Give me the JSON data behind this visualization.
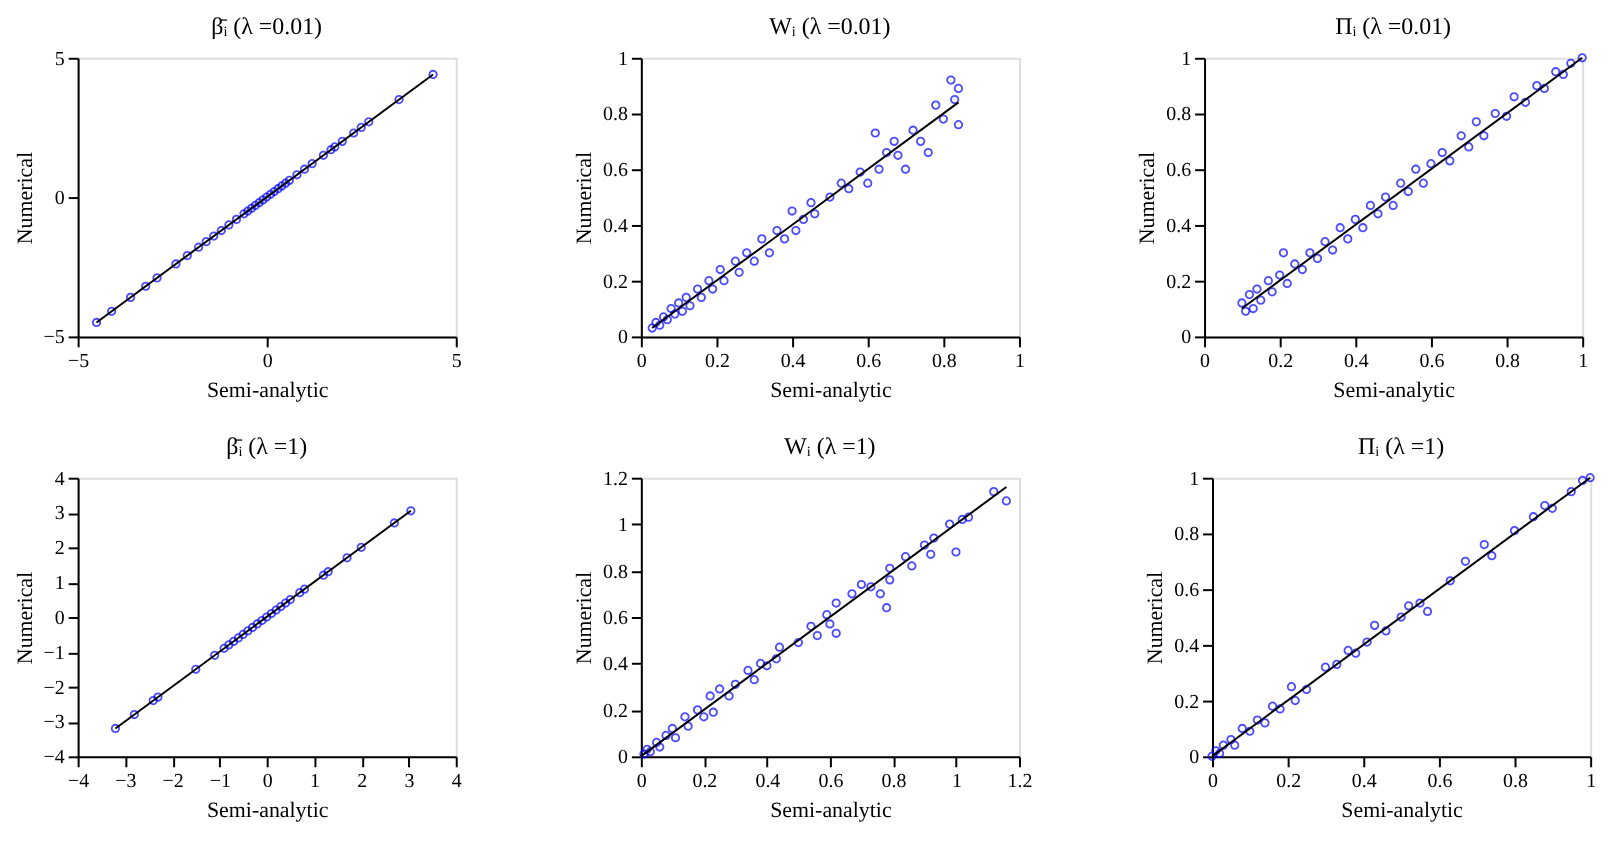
{
  "chart_data": [
    {
      "type": "scatter",
      "title": "β̄ᵢ (λ =0.01)",
      "xlabel": "Semi-analytic",
      "ylabel": "Numerical",
      "xlim": [
        -5,
        5
      ],
      "ylim": [
        -5,
        5
      ],
      "xticks": [
        -5,
        0,
        5
      ],
      "yticks": [
        -5,
        0,
        5
      ],
      "grid": false,
      "marker": "circle",
      "series": [
        {
          "color": "#0000ff",
          "x": [
            -4.5,
            -4.1,
            -3.6,
            -3.2,
            -2.9,
            -2.4,
            -2.1,
            -1.8,
            -1.6,
            -1.4,
            -1.2,
            -1.0,
            -0.8,
            -0.6,
            -0.5,
            -0.4,
            -0.3,
            -0.2,
            -0.1,
            0,
            0.1,
            0.2,
            0.3,
            0.4,
            0.5,
            0.6,
            0.8,
            1.0,
            1.2,
            1.5,
            1.7,
            1.8,
            2.0,
            2.3,
            2.5,
            2.7,
            3.5,
            4.4
          ],
          "values": [
            -4.5,
            -4.1,
            -3.6,
            -3.2,
            -2.9,
            -2.4,
            -2.1,
            -1.8,
            -1.6,
            -1.4,
            -1.2,
            -1.0,
            -0.8,
            -0.6,
            -0.5,
            -0.4,
            -0.3,
            -0.2,
            -0.1,
            0,
            0.1,
            0.2,
            0.3,
            0.4,
            0.5,
            0.6,
            0.8,
            1.0,
            1.2,
            1.5,
            1.7,
            1.8,
            2.0,
            2.3,
            2.5,
            2.7,
            3.5,
            4.4
          ]
        },
        {
          "type": "line",
          "color": "#000000",
          "line_style": "solid",
          "marker": "none",
          "x": [
            -4.5,
            4.4
          ],
          "values": [
            -4.5,
            4.4
          ]
        }
      ]
    },
    {
      "type": "scatter",
      "title": "Wᵢ (λ =0.01)",
      "xlabel": "Semi-analytic",
      "ylabel": "Numerical",
      "xlim": [
        0,
        1
      ],
      "ylim": [
        0,
        1
      ],
      "xticks": [
        0,
        0.2,
        0.4,
        0.6,
        0.8,
        1
      ],
      "yticks": [
        0,
        0.2,
        0.4,
        0.6,
        0.8,
        1
      ],
      "grid": false,
      "marker": "circle",
      "series": [
        {
          "color": "#0000ff",
          "x": [
            0.03,
            0.04,
            0.05,
            0.06,
            0.07,
            0.08,
            0.09,
            0.1,
            0.11,
            0.12,
            0.13,
            0.15,
            0.16,
            0.18,
            0.19,
            0.21,
            0.22,
            0.25,
            0.26,
            0.28,
            0.3,
            0.32,
            0.34,
            0.36,
            0.38,
            0.4,
            0.41,
            0.43,
            0.45,
            0.46,
            0.5,
            0.53,
            0.55,
            0.58,
            0.6,
            0.62,
            0.63,
            0.65,
            0.67,
            0.68,
            0.7,
            0.72,
            0.74,
            0.76,
            0.78,
            0.8,
            0.82,
            0.83,
            0.84,
            0.84
          ],
          "values": [
            0.03,
            0.05,
            0.04,
            0.07,
            0.06,
            0.1,
            0.08,
            0.12,
            0.09,
            0.14,
            0.11,
            0.17,
            0.14,
            0.2,
            0.17,
            0.24,
            0.2,
            0.27,
            0.23,
            0.3,
            0.27,
            0.35,
            0.3,
            0.38,
            0.35,
            0.45,
            0.38,
            0.42,
            0.48,
            0.44,
            0.5,
            0.55,
            0.53,
            0.59,
            0.55,
            0.73,
            0.6,
            0.66,
            0.7,
            0.65,
            0.6,
            0.74,
            0.7,
            0.66,
            0.83,
            0.78,
            0.92,
            0.85,
            0.89,
            0.76
          ]
        },
        {
          "type": "line",
          "color": "#000000",
          "line_style": "solid",
          "marker": "none",
          "x": [
            0.03,
            0.84
          ],
          "values": [
            0.03,
            0.84
          ]
        }
      ]
    },
    {
      "type": "scatter",
      "title": "Πᵢ (λ =0.01)",
      "xlabel": "Semi-analytic",
      "ylabel": "Numerical",
      "xlim": [
        0,
        1
      ],
      "ylim": [
        0,
        1
      ],
      "xticks": [
        0,
        0.2,
        0.4,
        0.6,
        0.8,
        1
      ],
      "yticks": [
        0,
        0.2,
        0.4,
        0.6,
        0.8,
        1
      ],
      "grid": false,
      "marker": "circle",
      "series": [
        {
          "color": "#0000ff",
          "x": [
            0.1,
            0.11,
            0.12,
            0.13,
            0.14,
            0.15,
            0.17,
            0.18,
            0.2,
            0.21,
            0.22,
            0.24,
            0.26,
            0.28,
            0.3,
            0.32,
            0.34,
            0.36,
            0.38,
            0.4,
            0.42,
            0.44,
            0.46,
            0.48,
            0.5,
            0.52,
            0.54,
            0.56,
            0.58,
            0.6,
            0.63,
            0.65,
            0.68,
            0.7,
            0.72,
            0.74,
            0.77,
            0.8,
            0.82,
            0.85,
            0.88,
            0.9,
            0.93,
            0.95,
            0.97,
            1.0
          ],
          "values": [
            0.12,
            0.09,
            0.15,
            0.1,
            0.17,
            0.13,
            0.2,
            0.16,
            0.22,
            0.3,
            0.19,
            0.26,
            0.24,
            0.3,
            0.28,
            0.34,
            0.31,
            0.39,
            0.35,
            0.42,
            0.39,
            0.47,
            0.44,
            0.5,
            0.47,
            0.55,
            0.52,
            0.6,
            0.55,
            0.62,
            0.66,
            0.63,
            0.72,
            0.68,
            0.77,
            0.72,
            0.8,
            0.79,
            0.86,
            0.84,
            0.9,
            0.89,
            0.95,
            0.94,
            0.98,
            1.0
          ]
        },
        {
          "type": "line",
          "color": "#000000",
          "line_style": "solid",
          "marker": "none",
          "x": [
            0.1,
            1.0
          ],
          "values": [
            0.1,
            1.0
          ]
        }
      ]
    },
    {
      "type": "scatter",
      "title": "β̄ᵢ (λ =1)",
      "xlabel": "Semi-analytic",
      "ylabel": "Numerical",
      "xlim": [
        -4,
        4
      ],
      "ylim": [
        -4,
        4
      ],
      "xticks": [
        -4,
        -3,
        -2,
        -1,
        0,
        1,
        2,
        3,
        4
      ],
      "yticks": [
        -4,
        -3,
        -2,
        -1,
        0,
        1,
        2,
        3,
        4
      ],
      "grid": false,
      "marker": "circle",
      "series": [
        {
          "color": "#0000ff",
          "x": [
            -3.2,
            -2.8,
            -2.4,
            -2.3,
            -1.5,
            -1.1,
            -0.9,
            -0.8,
            -0.7,
            -0.6,
            -0.5,
            -0.4,
            -0.3,
            -0.2,
            -0.1,
            0,
            0.1,
            0.2,
            0.3,
            0.4,
            0.5,
            0.7,
            0.8,
            1.2,
            1.3,
            1.7,
            2.0,
            2.7,
            3.05
          ],
          "values": [
            -3.2,
            -2.8,
            -2.4,
            -2.3,
            -1.5,
            -1.1,
            -0.9,
            -0.8,
            -0.7,
            -0.6,
            -0.5,
            -0.4,
            -0.3,
            -0.2,
            -0.1,
            0,
            0.1,
            0.2,
            0.3,
            0.4,
            0.5,
            0.7,
            0.8,
            1.2,
            1.3,
            1.7,
            2.0,
            2.7,
            3.05
          ]
        },
        {
          "type": "line",
          "color": "#000000",
          "line_style": "solid",
          "marker": "none",
          "x": [
            -3.2,
            3.05
          ],
          "values": [
            -3.2,
            3.05
          ]
        }
      ]
    },
    {
      "type": "scatter",
      "title": "Wᵢ (λ =1)",
      "xlabel": "Semi-analytic",
      "ylabel": "Numerical",
      "xlim": [
        0,
        1.2
      ],
      "ylim": [
        0,
        1.2
      ],
      "xticks": [
        0,
        0.2,
        0.4,
        0.6,
        0.8,
        1,
        1.2
      ],
      "yticks": [
        0,
        0.2,
        0.4,
        0.6,
        0.8,
        1,
        1.2
      ],
      "grid": false,
      "marker": "circle",
      "series": [
        {
          "color": "#0000ff",
          "x": [
            0.01,
            0.02,
            0.03,
            0.05,
            0.06,
            0.08,
            0.1,
            0.11,
            0.14,
            0.15,
            0.18,
            0.2,
            0.22,
            0.23,
            0.25,
            0.28,
            0.3,
            0.34,
            0.36,
            0.38,
            0.4,
            0.43,
            0.44,
            0.5,
            0.54,
            0.56,
            0.59,
            0.6,
            0.62,
            0.62,
            0.67,
            0.7,
            0.73,
            0.76,
            0.78,
            0.79,
            0.79,
            0.84,
            0.86,
            0.9,
            0.92,
            0.93,
            0.98,
            1.0,
            1.02,
            1.04,
            1.12,
            1.16
          ],
          "values": [
            0.01,
            0.03,
            0.02,
            0.06,
            0.04,
            0.09,
            0.12,
            0.08,
            0.17,
            0.13,
            0.2,
            0.17,
            0.26,
            0.19,
            0.29,
            0.26,
            0.31,
            0.37,
            0.33,
            0.4,
            0.39,
            0.42,
            0.47,
            0.49,
            0.56,
            0.52,
            0.61,
            0.57,
            0.53,
            0.66,
            0.7,
            0.74,
            0.73,
            0.7,
            0.64,
            0.81,
            0.76,
            0.86,
            0.82,
            0.91,
            0.87,
            0.94,
            1.0,
            0.88,
            1.02,
            1.03,
            1.14,
            1.1
          ]
        },
        {
          "type": "line",
          "color": "#000000",
          "line_style": "solid",
          "marker": "none",
          "x": [
            0,
            1.16
          ],
          "values": [
            0,
            1.16
          ]
        }
      ]
    },
    {
      "type": "scatter",
      "title": "Πᵢ (λ =1)",
      "xlabel": "Semi-analytic",
      "ylabel": "Numerical",
      "xlim": [
        0,
        1
      ],
      "ylim": [
        0,
        1
      ],
      "xticks": [
        0,
        0.2,
        0.4,
        0.6,
        0.8,
        1
      ],
      "yticks": [
        0,
        0.2,
        0.4,
        0.6,
        0.8,
        1
      ],
      "grid": false,
      "marker": "circle",
      "series": [
        {
          "color": "#0000ff",
          "x": [
            0,
            0.01,
            0.02,
            0.03,
            0.05,
            0.06,
            0.08,
            0.1,
            0.12,
            0.14,
            0.16,
            0.18,
            0.21,
            0.22,
            0.25,
            0.3,
            0.33,
            0.36,
            0.38,
            0.41,
            0.43,
            0.46,
            0.5,
            0.52,
            0.55,
            0.57,
            0.63,
            0.67,
            0.72,
            0.74,
            0.8,
            0.85,
            0.88,
            0.9,
            0.95,
            0.98,
            1.0
          ],
          "values": [
            0,
            0.02,
            0.01,
            0.04,
            0.06,
            0.04,
            0.1,
            0.09,
            0.13,
            0.12,
            0.18,
            0.17,
            0.25,
            0.2,
            0.24,
            0.32,
            0.33,
            0.38,
            0.37,
            0.41,
            0.47,
            0.45,
            0.5,
            0.54,
            0.55,
            0.52,
            0.63,
            0.7,
            0.76,
            0.72,
            0.81,
            0.86,
            0.9,
            0.89,
            0.95,
            0.99,
            1.0
          ]
        },
        {
          "type": "line",
          "color": "#000000",
          "line_style": "solid",
          "marker": "none",
          "x": [
            0,
            1.0
          ],
          "values": [
            0,
            1.0
          ]
        }
      ]
    }
  ]
}
